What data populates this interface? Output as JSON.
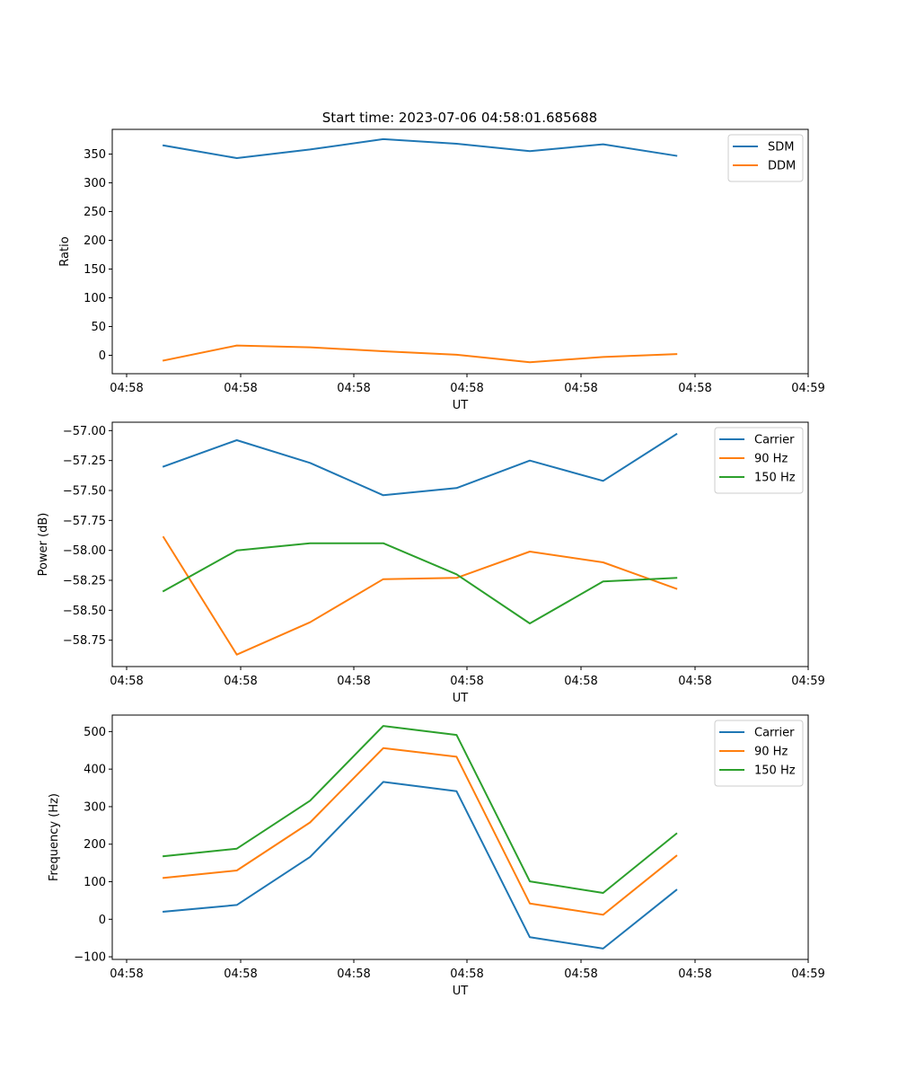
{
  "title": "Start time: 2023-07-06 04:58:01.685688",
  "chart_data": [
    {
      "type": "line",
      "title": "Start time: 2023-07-06 04:58:01.685688",
      "xlabel": "UT",
      "ylabel": "Ratio",
      "x_tick_labels": [
        "04:58",
        "04:58",
        "04:58",
        "04:58",
        "04:58",
        "04:58",
        "04:59"
      ],
      "x_index_range": [
        -0.2,
        9.3
      ],
      "x": [
        0.5,
        1.5,
        2.5,
        3.5,
        4.5,
        5.5,
        6.5,
        7.5
      ],
      "ylim": [
        -32,
        393
      ],
      "yticks": [
        0,
        50,
        100,
        150,
        200,
        250,
        300,
        350
      ],
      "ytick_labels": [
        "0",
        "50",
        "100",
        "150",
        "200",
        "250",
        "300",
        "350"
      ],
      "legend_position": "top-right",
      "series": [
        {
          "name": "SDM",
          "color": "#1f77b4",
          "values": [
            365,
            343,
            358,
            376,
            368,
            355,
            367,
            347
          ]
        },
        {
          "name": "DDM",
          "color": "#ff7f0e",
          "values": [
            -9,
            17,
            14,
            7,
            1,
            -12,
            -3,
            2
          ]
        }
      ]
    },
    {
      "type": "line",
      "title": "",
      "xlabel": "UT",
      "ylabel": "Power (dB)",
      "x_tick_labels": [
        "04:58",
        "04:58",
        "04:58",
        "04:58",
        "04:58",
        "04:58",
        "04:59"
      ],
      "x_index_range": [
        -0.2,
        9.3
      ],
      "x": [
        0.5,
        1.5,
        2.5,
        3.5,
        4.5,
        5.5,
        6.5,
        7.5
      ],
      "ylim": [
        -58.97,
        -56.93
      ],
      "yticks": [
        -58.75,
        -58.5,
        -58.25,
        -58.0,
        -57.75,
        -57.5,
        -57.25,
        -57.0
      ],
      "ytick_labels": [
        "−58.75",
        "−58.50",
        "−58.25",
        "−58.00",
        "−57.75",
        "−57.50",
        "−57.25",
        "−57.00"
      ],
      "legend_position": "top-right",
      "series": [
        {
          "name": "Carrier",
          "color": "#1f77b4",
          "values": [
            -57.3,
            -57.08,
            -57.27,
            -57.54,
            -57.48,
            -57.25,
            -57.42,
            -57.03
          ]
        },
        {
          "name": "90 Hz",
          "color": "#ff7f0e",
          "values": [
            -57.89,
            -58.87,
            -58.6,
            -58.24,
            -58.23,
            -58.01,
            -58.1,
            -58.32
          ]
        },
        {
          "name": "150 Hz",
          "color": "#2ca02c",
          "values": [
            -58.34,
            -58.0,
            -57.94,
            -57.94,
            -58.2,
            -58.61,
            -58.26,
            -58.23
          ]
        }
      ]
    },
    {
      "type": "line",
      "title": "",
      "xlabel": "UT",
      "ylabel": "Frequency (Hz)",
      "x_tick_labels": [
        "04:58",
        "04:58",
        "04:58",
        "04:58",
        "04:58",
        "04:58",
        "04:59"
      ],
      "x_index_range": [
        -0.2,
        9.3
      ],
      "x": [
        0.5,
        1.5,
        2.5,
        3.5,
        4.5,
        5.5,
        6.5,
        7.5
      ],
      "ylim": [
        -107,
        544
      ],
      "yticks": [
        -100,
        0,
        100,
        200,
        300,
        400,
        500
      ],
      "ytick_labels": [
        "−100",
        "0",
        "100",
        "200",
        "300",
        "400",
        "500"
      ],
      "legend_position": "top-right",
      "series": [
        {
          "name": "Carrier",
          "color": "#1f77b4",
          "values": [
            20,
            38,
            166,
            366,
            341,
            -48,
            -78,
            78
          ]
        },
        {
          "name": "90 Hz",
          "color": "#ff7f0e",
          "values": [
            110,
            130,
            258,
            456,
            433,
            42,
            12,
            169
          ]
        },
        {
          "name": "150 Hz",
          "color": "#2ca02c",
          "values": [
            168,
            188,
            316,
            515,
            491,
            101,
            70,
            228
          ]
        }
      ]
    }
  ]
}
